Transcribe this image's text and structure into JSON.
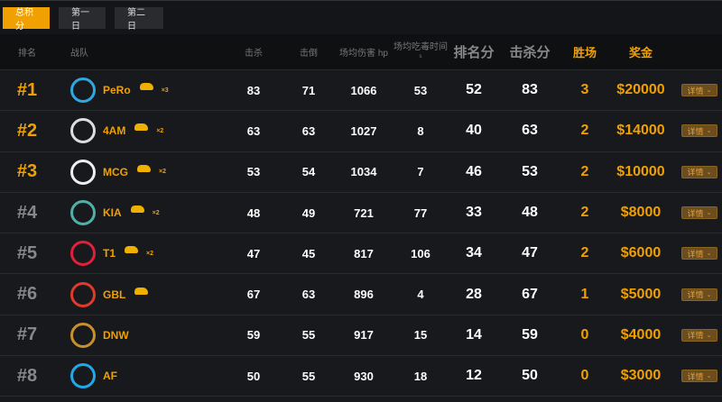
{
  "tabs": [
    {
      "label": "总积分",
      "active": true
    },
    {
      "label": "第一日"
    },
    {
      "label": "第二日"
    }
  ],
  "headers": {
    "rank": "排名",
    "team": "战队",
    "kills": "击杀",
    "knocks": "击倒",
    "damage": "场均伤害 hp",
    "poison": "场均吃毒时间",
    "poison_unit": "s",
    "rank_pts": "排名分",
    "kill_pts": "击杀分",
    "wins": "胜场",
    "prize": "奖金"
  },
  "detail_label": "详情",
  "colors": {
    "accent": "#f0a000",
    "top_rank": "#f0a000",
    "other_rank": "#888888"
  },
  "rows": [
    {
      "rank": "#1",
      "team": "PeRo",
      "chicken": "×3",
      "kills": "83",
      "knocks": "71",
      "damage": "1066",
      "poison": "53",
      "rank_pts": "52",
      "kill_pts": "83",
      "wins": "3",
      "prize": "$20000",
      "logo_color": "#2ea8e0"
    },
    {
      "rank": "#2",
      "team": "4AM",
      "chicken": "×2",
      "kills": "63",
      "knocks": "63",
      "damage": "1027",
      "poison": "8",
      "rank_pts": "40",
      "kill_pts": "63",
      "wins": "2",
      "prize": "$14000",
      "logo_color": "#dddddd"
    },
    {
      "rank": "#3",
      "team": "MCG",
      "chicken": "×2",
      "kills": "53",
      "knocks": "54",
      "damage": "1034",
      "poison": "7",
      "rank_pts": "46",
      "kill_pts": "53",
      "wins": "2",
      "prize": "$10000",
      "logo_color": "#eeeeee"
    },
    {
      "rank": "#4",
      "team": "KIA",
      "chicken": "×2",
      "kills": "48",
      "knocks": "49",
      "damage": "721",
      "poison": "77",
      "rank_pts": "33",
      "kill_pts": "48",
      "wins": "2",
      "prize": "$8000",
      "logo_color": "#4fb0a8"
    },
    {
      "rank": "#5",
      "team": "T1",
      "chicken": "×2",
      "kills": "47",
      "knocks": "45",
      "damage": "817",
      "poison": "106",
      "rank_pts": "34",
      "kill_pts": "47",
      "wins": "2",
      "prize": "$6000",
      "logo_color": "#e0203a"
    },
    {
      "rank": "#6",
      "team": "GBL",
      "chicken": "",
      "show_chicken": true,
      "kills": "67",
      "knocks": "63",
      "damage": "896",
      "poison": "4",
      "rank_pts": "28",
      "kill_pts": "67",
      "wins": "1",
      "prize": "$5000",
      "logo_color": "#e03a2a"
    },
    {
      "rank": "#7",
      "team": "DNW",
      "chicken": "",
      "kills": "59",
      "knocks": "55",
      "damage": "917",
      "poison": "15",
      "rank_pts": "14",
      "kill_pts": "59",
      "wins": "0",
      "prize": "$4000",
      "logo_color": "#c8902a"
    },
    {
      "rank": "#8",
      "team": "AF",
      "chicken": "",
      "kills": "50",
      "knocks": "55",
      "damage": "930",
      "poison": "18",
      "rank_pts": "12",
      "kill_pts": "50",
      "wins": "0",
      "prize": "$3000",
      "logo_color": "#20a8e8"
    }
  ]
}
